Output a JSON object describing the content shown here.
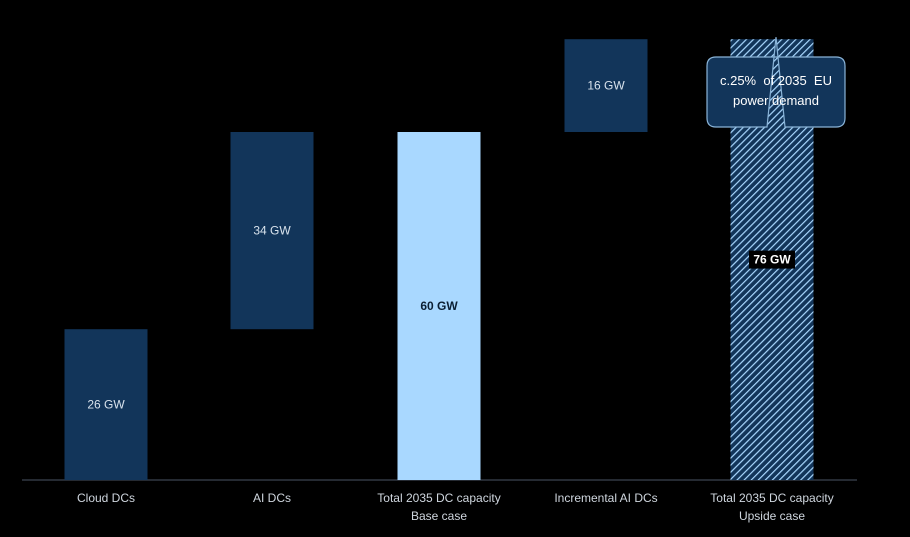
{
  "chart_data": {
    "type": "bar",
    "subtype": "waterfall",
    "categories": [
      [
        "Cloud DCs"
      ],
      [
        "AI DCs"
      ],
      [
        "Total 2035 DC capacity",
        "Base case"
      ],
      [
        "Incremental AI DCs"
      ],
      [
        "Total 2035 DC capacity",
        "Upside case"
      ]
    ],
    "values": [
      26,
      34,
      60,
      16,
      76
    ],
    "bases": [
      0,
      26,
      0,
      60,
      0
    ],
    "value_labels": [
      "26 GW",
      "34 GW",
      "60 GW",
      "16 GW",
      "76 GW"
    ],
    "unit": "GW",
    "ylim": [
      0,
      80
    ],
    "grid": false,
    "callout": {
      "lines": [
        "c.25%  of 2035  EU",
        "power demand"
      ],
      "target_index": 4
    },
    "colors": {
      "background": "#000000",
      "increment": "#12355a",
      "total_base": "#a9d8ff",
      "total_upside_hatch": "#a9d8ff",
      "callout_fill": "#12355a",
      "callout_border": "#8ab4d8",
      "axis": "#4a5563"
    }
  }
}
